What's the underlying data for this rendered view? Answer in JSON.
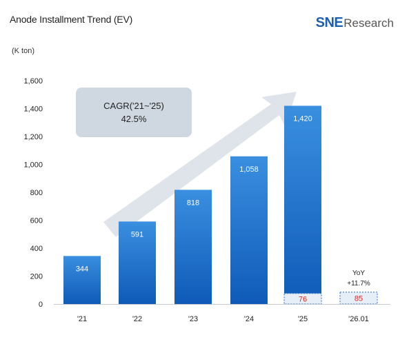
{
  "header": {
    "title": "Anode Installment Trend (EV)",
    "unit": "(K ton)",
    "logo_brand": "SNE",
    "logo_suffix": "Research"
  },
  "chart_data": {
    "type": "bar",
    "categories": [
      "'21",
      "'22",
      "'23",
      "'24",
      "'25",
      "'26.01"
    ],
    "series": [
      {
        "values": [
          344,
          591,
          818,
          1058,
          1420,
          null
        ],
        "labels": [
          "344",
          "591",
          "818",
          "1,058",
          "1,420",
          ""
        ]
      }
    ],
    "monthly_markers": [
      {
        "category": "'25",
        "value": 76,
        "label": "76"
      },
      {
        "category": "'26.01",
        "value": 85,
        "label": "85"
      }
    ],
    "yticks": [
      0,
      200,
      400,
      600,
      800,
      1000,
      1200,
      1400,
      1600
    ],
    "ytick_labels": [
      "0",
      "200",
      "400",
      "600",
      "800",
      "1,000",
      "1,200",
      "1,400",
      "1,600"
    ],
    "ylim": [
      0,
      1600
    ],
    "grid": false,
    "annotations": {
      "cagr_line1": "CAGR('21~'25)",
      "cagr_line2": "42.5%",
      "yoy_line1": "YoY",
      "yoy_line2": "+11.7%"
    },
    "colors": {
      "bar_top": "#3a8fe0",
      "bar_bottom": "#0f5ab8",
      "marker_fill": "#e6eef8",
      "marker_border": "#3a7fd0",
      "arrow": "#dfe4ea",
      "cagr_box": "#cfd8e0"
    }
  }
}
